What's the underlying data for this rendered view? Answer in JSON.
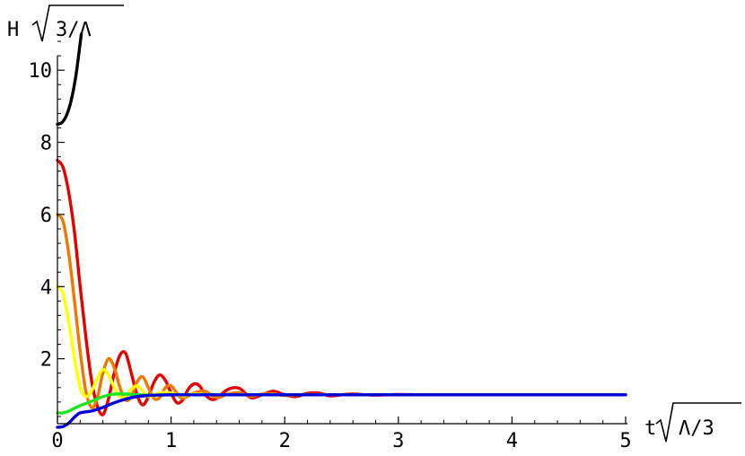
{
  "chart_data": {
    "type": "line",
    "title": "",
    "xlabel_prefix": "t",
    "xlabel_radicand": "Λ/3",
    "ylabel_prefix": "H",
    "ylabel_radicand": "3/Λ",
    "xlim": [
      0,
      5
    ],
    "ylim": [
      0,
      11
    ],
    "x_axis_at_y": 0.2,
    "xticks": [
      0,
      1,
      2,
      3,
      4,
      5
    ],
    "xtick_labels": [
      "0",
      "1",
      "2",
      "3",
      "4",
      "5"
    ],
    "yticks": [
      2,
      4,
      6,
      8,
      10
    ],
    "ytick_labels": [
      "2",
      "4",
      "6",
      "8",
      "10"
    ],
    "grid": false,
    "legend": "none",
    "series": [
      {
        "color": "#000000",
        "points": [
          [
            0,
            8.5
          ],
          [
            0.04,
            8.55
          ],
          [
            0.08,
            8.75
          ],
          [
            0.12,
            9.15
          ],
          [
            0.16,
            9.8
          ],
          [
            0.19,
            10.5
          ],
          [
            0.21,
            11.0
          ]
        ]
      },
      {
        "color": "#e60000",
        "points": [
          [
            0,
            7.5
          ],
          [
            0.05,
            7.3
          ],
          [
            0.1,
            6.6
          ],
          [
            0.15,
            5.5
          ],
          [
            0.2,
            4.0
          ],
          [
            0.25,
            2.6
          ],
          [
            0.3,
            1.4
          ],
          [
            0.35,
            0.7
          ],
          [
            0.4,
            0.45
          ],
          [
            0.45,
            0.9
          ],
          [
            0.5,
            1.6
          ],
          [
            0.55,
            2.1
          ],
          [
            0.6,
            2.15
          ],
          [
            0.65,
            1.6
          ],
          [
            0.7,
            1.0
          ],
          [
            0.75,
            0.72
          ],
          [
            0.8,
            0.95
          ],
          [
            0.85,
            1.35
          ],
          [
            0.9,
            1.55
          ],
          [
            0.95,
            1.4
          ],
          [
            1.0,
            1.05
          ],
          [
            1.05,
            0.78
          ],
          [
            1.1,
            0.85
          ],
          [
            1.15,
            1.15
          ],
          [
            1.2,
            1.3
          ],
          [
            1.25,
            1.25
          ],
          [
            1.3,
            1.0
          ],
          [
            1.35,
            0.88
          ],
          [
            1.4,
            0.9
          ],
          [
            1.5,
            1.15
          ],
          [
            1.6,
            1.18
          ],
          [
            1.7,
            0.92
          ],
          [
            1.8,
            1.0
          ],
          [
            1.9,
            1.1
          ],
          [
            2.0,
            1.0
          ],
          [
            2.1,
            0.95
          ],
          [
            2.2,
            1.04
          ],
          [
            2.3,
            1.05
          ],
          [
            2.4,
            0.97
          ],
          [
            2.5,
            1.0
          ],
          [
            2.6,
            1.02
          ],
          [
            2.8,
            0.99
          ],
          [
            3.0,
            1.01
          ],
          [
            3.2,
            1.0
          ],
          [
            3.5,
            1.0
          ],
          [
            4.0,
            1.0
          ],
          [
            4.5,
            1.0
          ],
          [
            5.0,
            1.0
          ]
        ]
      },
      {
        "color": "#f07800",
        "points": [
          [
            0,
            6.0
          ],
          [
            0.05,
            5.8
          ],
          [
            0.1,
            4.9
          ],
          [
            0.15,
            3.6
          ],
          [
            0.2,
            2.2
          ],
          [
            0.25,
            1.1
          ],
          [
            0.3,
            0.65
          ],
          [
            0.35,
            0.9
          ],
          [
            0.4,
            1.6
          ],
          [
            0.45,
            2.0
          ],
          [
            0.5,
            1.75
          ],
          [
            0.55,
            1.2
          ],
          [
            0.6,
            0.85
          ],
          [
            0.65,
            0.95
          ],
          [
            0.7,
            1.35
          ],
          [
            0.75,
            1.5
          ],
          [
            0.8,
            1.2
          ],
          [
            0.85,
            0.9
          ],
          [
            0.9,
            0.92
          ],
          [
            0.95,
            1.2
          ],
          [
            1.0,
            1.25
          ],
          [
            1.05,
            1.05
          ],
          [
            1.1,
            0.9
          ],
          [
            1.2,
            1.05
          ],
          [
            1.3,
            1.1
          ],
          [
            1.4,
            0.92
          ],
          [
            1.5,
            1.02
          ],
          [
            1.6,
            1.06
          ],
          [
            1.7,
            0.96
          ],
          [
            1.8,
            1.02
          ],
          [
            1.9,
            1.03
          ],
          [
            2.0,
            0.98
          ],
          [
            2.2,
            1.01
          ],
          [
            2.5,
            1.0
          ],
          [
            3.0,
            1.0
          ],
          [
            4.0,
            1.0
          ],
          [
            5.0,
            1.0
          ]
        ]
      },
      {
        "color": "#ffff00",
        "points": [
          [
            0,
            4.0
          ],
          [
            0.05,
            3.8
          ],
          [
            0.1,
            3.0
          ],
          [
            0.15,
            2.0
          ],
          [
            0.2,
            1.2
          ],
          [
            0.25,
            0.95
          ],
          [
            0.3,
            1.1
          ],
          [
            0.35,
            1.45
          ],
          [
            0.4,
            1.7
          ],
          [
            0.45,
            1.55
          ],
          [
            0.5,
            1.2
          ],
          [
            0.55,
            0.95
          ],
          [
            0.6,
            0.95
          ],
          [
            0.65,
            1.15
          ],
          [
            0.7,
            1.25
          ],
          [
            0.75,
            1.1
          ],
          [
            0.8,
            0.95
          ],
          [
            0.9,
            1.05
          ],
          [
            1.0,
            1.05
          ],
          [
            1.1,
            0.97
          ],
          [
            1.2,
            1.02
          ],
          [
            1.4,
            1.0
          ],
          [
            1.6,
            1.0
          ],
          [
            2.0,
            1.0
          ],
          [
            3.0,
            1.0
          ],
          [
            4.0,
            1.0
          ],
          [
            5.0,
            1.0
          ]
        ]
      },
      {
        "color": "#1ee61e",
        "points": [
          [
            0,
            0.5
          ],
          [
            0.05,
            0.5
          ],
          [
            0.1,
            0.55
          ],
          [
            0.2,
            0.7
          ],
          [
            0.3,
            0.82
          ],
          [
            0.4,
            0.95
          ],
          [
            0.5,
            1.02
          ],
          [
            0.6,
            1.02
          ],
          [
            0.8,
            0.99
          ],
          [
            1.0,
            1.0
          ],
          [
            1.5,
            1.0
          ],
          [
            2.0,
            1.0
          ],
          [
            3.0,
            1.0
          ],
          [
            4.0,
            1.0
          ],
          [
            5.0,
            1.0
          ]
        ]
      },
      {
        "color": "#0000dc",
        "points": [
          [
            0,
            0.1
          ],
          [
            0.05,
            0.12
          ],
          [
            0.1,
            0.22
          ],
          [
            0.15,
            0.38
          ],
          [
            0.2,
            0.5
          ],
          [
            0.3,
            0.55
          ],
          [
            0.4,
            0.65
          ],
          [
            0.5,
            0.78
          ],
          [
            0.6,
            0.88
          ],
          [
            0.7,
            0.95
          ],
          [
            0.8,
            0.98
          ],
          [
            1.0,
            1.0
          ],
          [
            1.5,
            1.0
          ],
          [
            2.0,
            1.0
          ],
          [
            3.0,
            1.0
          ],
          [
            4.0,
            1.0
          ],
          [
            5.0,
            1.0
          ]
        ]
      }
    ]
  }
}
